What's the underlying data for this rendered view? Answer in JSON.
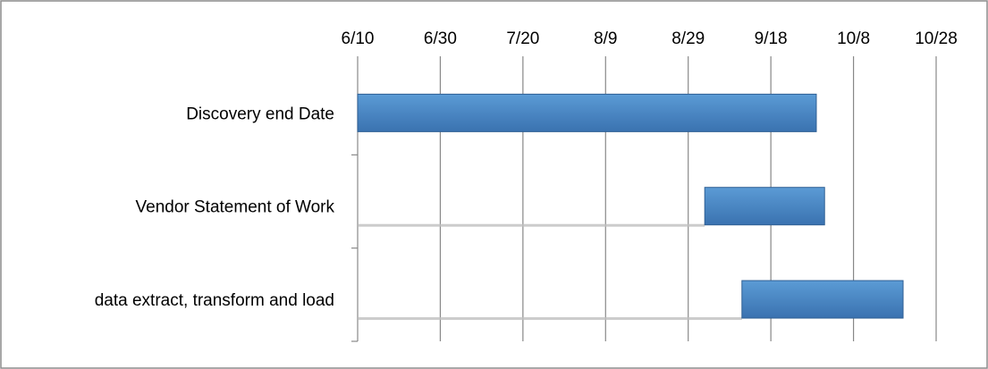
{
  "chart_data": {
    "type": "bar",
    "orientation": "horizontal",
    "stacked": true,
    "title": "",
    "xlabel": "",
    "ylabel": "",
    "x_axis_position": "top",
    "x_scale": "date",
    "x_tick_labels": [
      "6/10",
      "6/30",
      "7/20",
      "8/9",
      "8/29",
      "9/18",
      "10/8",
      "10/28"
    ],
    "xlim": [
      "6/10",
      "10/28"
    ],
    "grid": true,
    "legend": "none",
    "categories": [
      "Discovery end Date",
      "Vendor Statement of Work",
      "data extract, transform and load"
    ],
    "tasks": [
      {
        "name": "Discovery end Date",
        "start": "6/10",
        "end": "9/29"
      },
      {
        "name": "Vendor Statement of Work",
        "start": "9/2",
        "end": "10/1"
      },
      {
        "name": "data extract, transform and load",
        "start": "9/11",
        "end": "10/20"
      }
    ],
    "colors": {
      "bar_top": "#5b9bd5",
      "bar_bottom": "#3a72b0",
      "bar_border": "#2f5f94",
      "gridline": "#888888",
      "axis": "#888888",
      "baseline_shadow": "#bfbfbf",
      "frame": "#8c8c8c"
    }
  }
}
